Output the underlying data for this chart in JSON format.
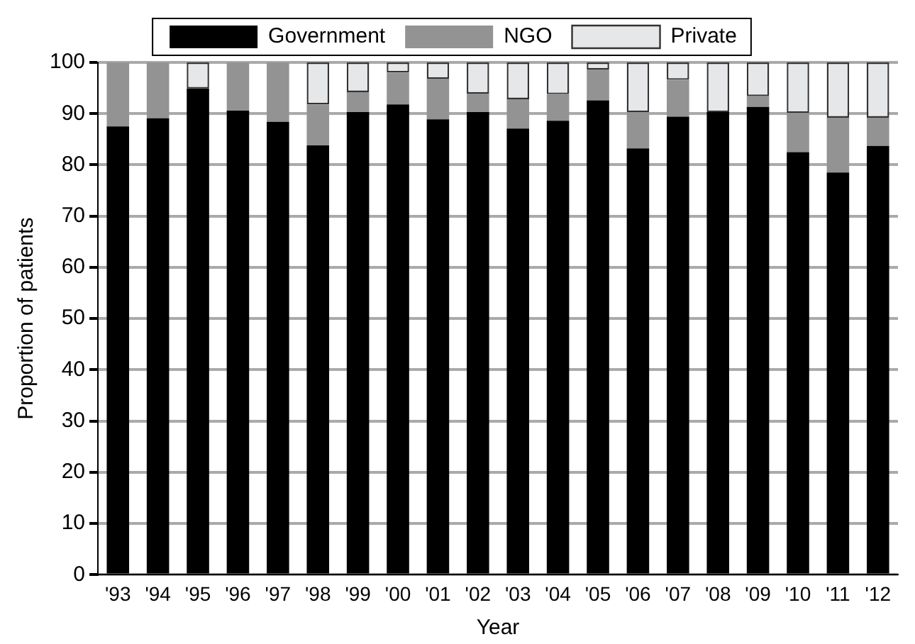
{
  "chart_data": {
    "type": "bar",
    "stacked": true,
    "xlabel": "Year",
    "ylabel": "Proportion of patients",
    "categories": [
      "'93",
      "'94",
      "'95",
      "'96",
      "'97",
      "'98",
      "'99",
      "'00",
      "'01",
      "'02",
      "'03",
      "'04",
      "'05",
      "'06",
      "'07",
      "'08",
      "'09",
      "'10",
      "'11",
      "'12"
    ],
    "series": [
      {
        "name": "Government",
        "color": "#000000",
        "values": [
          87.5,
          89.1,
          94.9,
          90.6,
          88.4,
          83.8,
          90.3,
          91.8,
          88.9,
          90.3,
          87.1,
          88.6,
          92.6,
          83.2,
          89.4,
          90.3,
          91.3,
          82.5,
          78.5,
          83.7
        ]
      },
      {
        "name": "NGO",
        "color": "#939393",
        "values": [
          12.5,
          10.9,
          0,
          9.4,
          11.6,
          8.0,
          3.9,
          6.2,
          7.9,
          3.6,
          5.7,
          5.2,
          6.0,
          7.1,
          7.2,
          0,
          2.1,
          7.6,
          10.7,
          5.5
        ]
      },
      {
        "name": "Private",
        "color": "#e6e7e9",
        "values": [
          0,
          0,
          5.1,
          0,
          0,
          8.2,
          5.8,
          2.0,
          3.2,
          6.1,
          7.2,
          6.2,
          1.4,
          9.7,
          3.4,
          9.7,
          6.6,
          9.9,
          10.8,
          10.8
        ]
      }
    ],
    "ylim": [
      0,
      100
    ],
    "yticks": [
      0,
      10,
      20,
      30,
      40,
      50,
      60,
      70,
      80,
      90,
      100
    ],
    "grid": "y",
    "legend": "top"
  }
}
